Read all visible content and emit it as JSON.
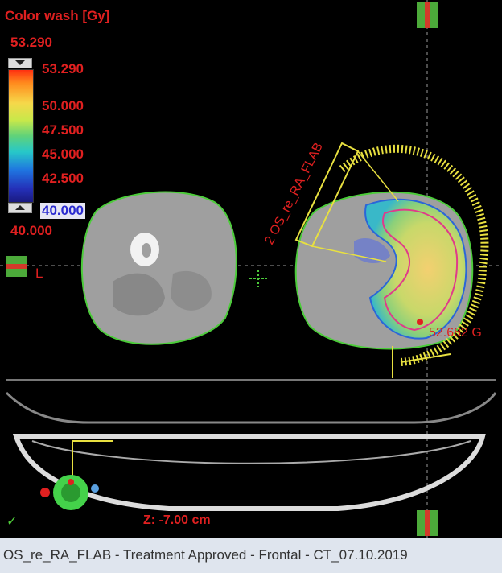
{
  "dose_legend": {
    "title": "Color wash [Gy]",
    "max_value": "53.290",
    "spin_top_value": "53.290",
    "ticks": [
      "50.000",
      "47.500",
      "45.000",
      "42.500"
    ],
    "spin_bottom_value": "40.000",
    "min_value": "40.000"
  },
  "orientation_label": "L",
  "beam_label": "2 OS_re_RA_FLAB",
  "dose_point_label": "52.682 G",
  "z_label": "Z: -7.00 cm",
  "status_bar": {
    "text": "OS_re_RA_FLAB  -  Treatment Approved - Frontal - CT_07.10.2019"
  },
  "colors": {
    "background": "#000000",
    "legend_text": "#e02020",
    "body_contour": "#4ccc3a",
    "beam": "#e8e040",
    "statusbar_bg": "#dfe5ee"
  },
  "icons": [
    "check-icon",
    "crosshair-icon",
    "patient-orientation-icon"
  ]
}
